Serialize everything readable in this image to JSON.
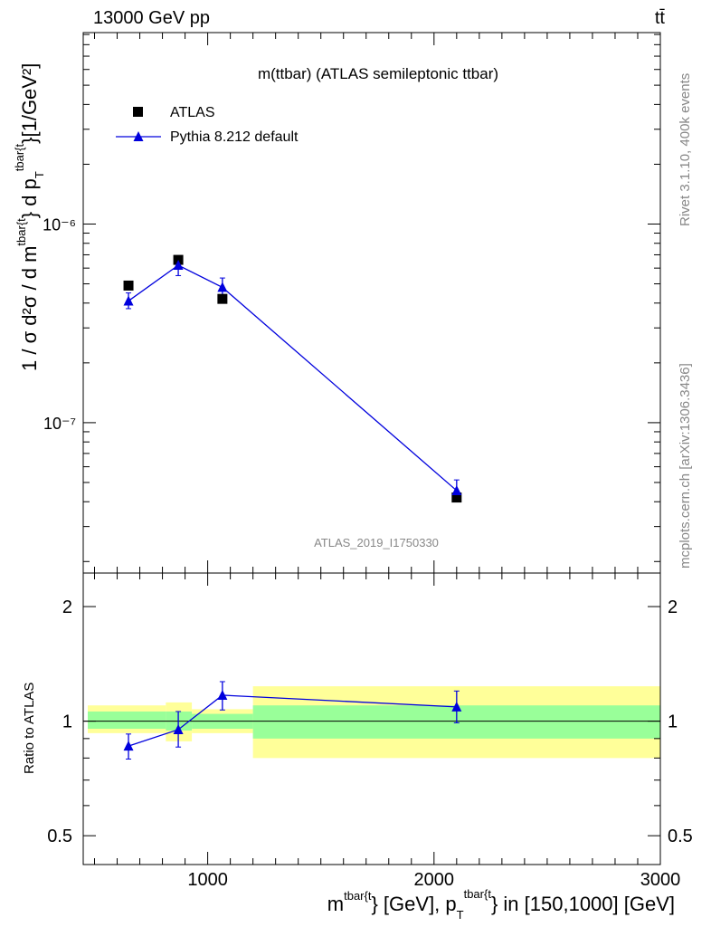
{
  "header": {
    "energy_label": "13000 GeV pp",
    "process_label": "tt̄"
  },
  "side_labels": {
    "rivet": "Rivet 3.1.10,  400k events",
    "mcplots": "mcplots.cern.ch [arXiv:1306.3436]"
  },
  "chart_data": [
    {
      "type": "scatter",
      "title": "m(ttbar) (ATLAS semileptonic ttbar)",
      "watermark": "ATLAS_2019_I1750330",
      "yscale": "log",
      "xlim": [
        450,
        3000
      ],
      "ylim": [
        1.75e-08,
        9.2e-06
      ],
      "ylabel_parts": {
        "main": "1 / σ d²σ / d m",
        "sup1": "tbar{t",
        "mid": "} d p",
        "sub": "T",
        "sup2": "tbar{t",
        "tail": "}[1/GeV²]"
      },
      "y_ticks": [
        {
          "value": 1e-07,
          "label": "10⁻⁷"
        },
        {
          "value": 1e-06,
          "label": "10⁻⁶"
        }
      ],
      "legend_position": "top-left",
      "series": [
        {
          "name": "ATLAS",
          "marker": "square",
          "color": "#000000",
          "points": [
            {
              "x": 650,
              "y": 4.9e-07
            },
            {
              "x": 870,
              "y": 6.6e-07
            },
            {
              "x": 1065,
              "y": 4.2e-07
            },
            {
              "x": 2100,
              "y": 4.2e-08
            }
          ]
        },
        {
          "name": "Pythia 8.212 default",
          "marker": "triangle",
          "color": "#0000dd",
          "points": [
            {
              "x": 650,
              "y": 4.1e-07,
              "ylo": 3.75e-07,
              "yhi": 4.5e-07
            },
            {
              "x": 870,
              "y": 6.2e-07,
              "ylo": 5.5e-07,
              "yhi": 6.9e-07
            },
            {
              "x": 1065,
              "y": 4.8e-07,
              "ylo": 4.3e-07,
              "yhi": 5.35e-07
            },
            {
              "x": 2100,
              "y": 4.55e-08,
              "ylo": 4.1e-08,
              "yhi": 5.15e-08
            }
          ]
        }
      ]
    },
    {
      "type": "scatter",
      "ylabel": "Ratio to ATLAS",
      "yscale": "log",
      "xlim": [
        450,
        3000
      ],
      "ylim": [
        0.42,
        2.45
      ],
      "x_ticks": [
        1000,
        2000,
        3000
      ],
      "y_ticks": [
        {
          "value": 0.5,
          "label": "0.5"
        },
        {
          "value": 1,
          "label": "1"
        },
        {
          "value": 2,
          "label": "2"
        }
      ],
      "xlabel_parts": {
        "m": "m",
        "sup1": "tbar{t",
        "a": "} [GeV], p",
        "sub": "T",
        "sup2": "tbar{t",
        "b": "} in [150,1000] [GeV]"
      },
      "uncertainty_bands": [
        {
          "xmin": 470,
          "xmax": 815,
          "stat_lo": 0.955,
          "stat_hi": 1.06,
          "tot_lo": 0.93,
          "tot_hi": 1.1
        },
        {
          "xmin": 815,
          "xmax": 930,
          "stat_lo": 0.945,
          "stat_hi": 1.06,
          "tot_lo": 0.885,
          "tot_hi": 1.12
        },
        {
          "xmin": 930,
          "xmax": 1200,
          "stat_lo": 0.955,
          "stat_hi": 1.045,
          "tot_lo": 0.93,
          "tot_hi": 1.075
        },
        {
          "xmin": 1200,
          "xmax": 3000,
          "stat_lo": 0.9,
          "stat_hi": 1.1,
          "tot_lo": 0.8,
          "tot_hi": 1.235
        }
      ],
      "band_colors": {
        "stat": "#99ff99",
        "total": "#ffff99"
      },
      "reference_line": 1,
      "series": [
        {
          "name": "Pythia 8.212 default",
          "color": "#0000dd",
          "points": [
            {
              "x": 650,
              "y": 0.86,
              "ylo": 0.795,
              "yhi": 0.925
            },
            {
              "x": 870,
              "y": 0.95,
              "ylo": 0.855,
              "yhi": 1.06
            },
            {
              "x": 1065,
              "y": 1.17,
              "ylo": 1.07,
              "yhi": 1.27
            },
            {
              "x": 2100,
              "y": 1.09,
              "ylo": 0.99,
              "yhi": 1.2
            }
          ]
        }
      ]
    }
  ]
}
